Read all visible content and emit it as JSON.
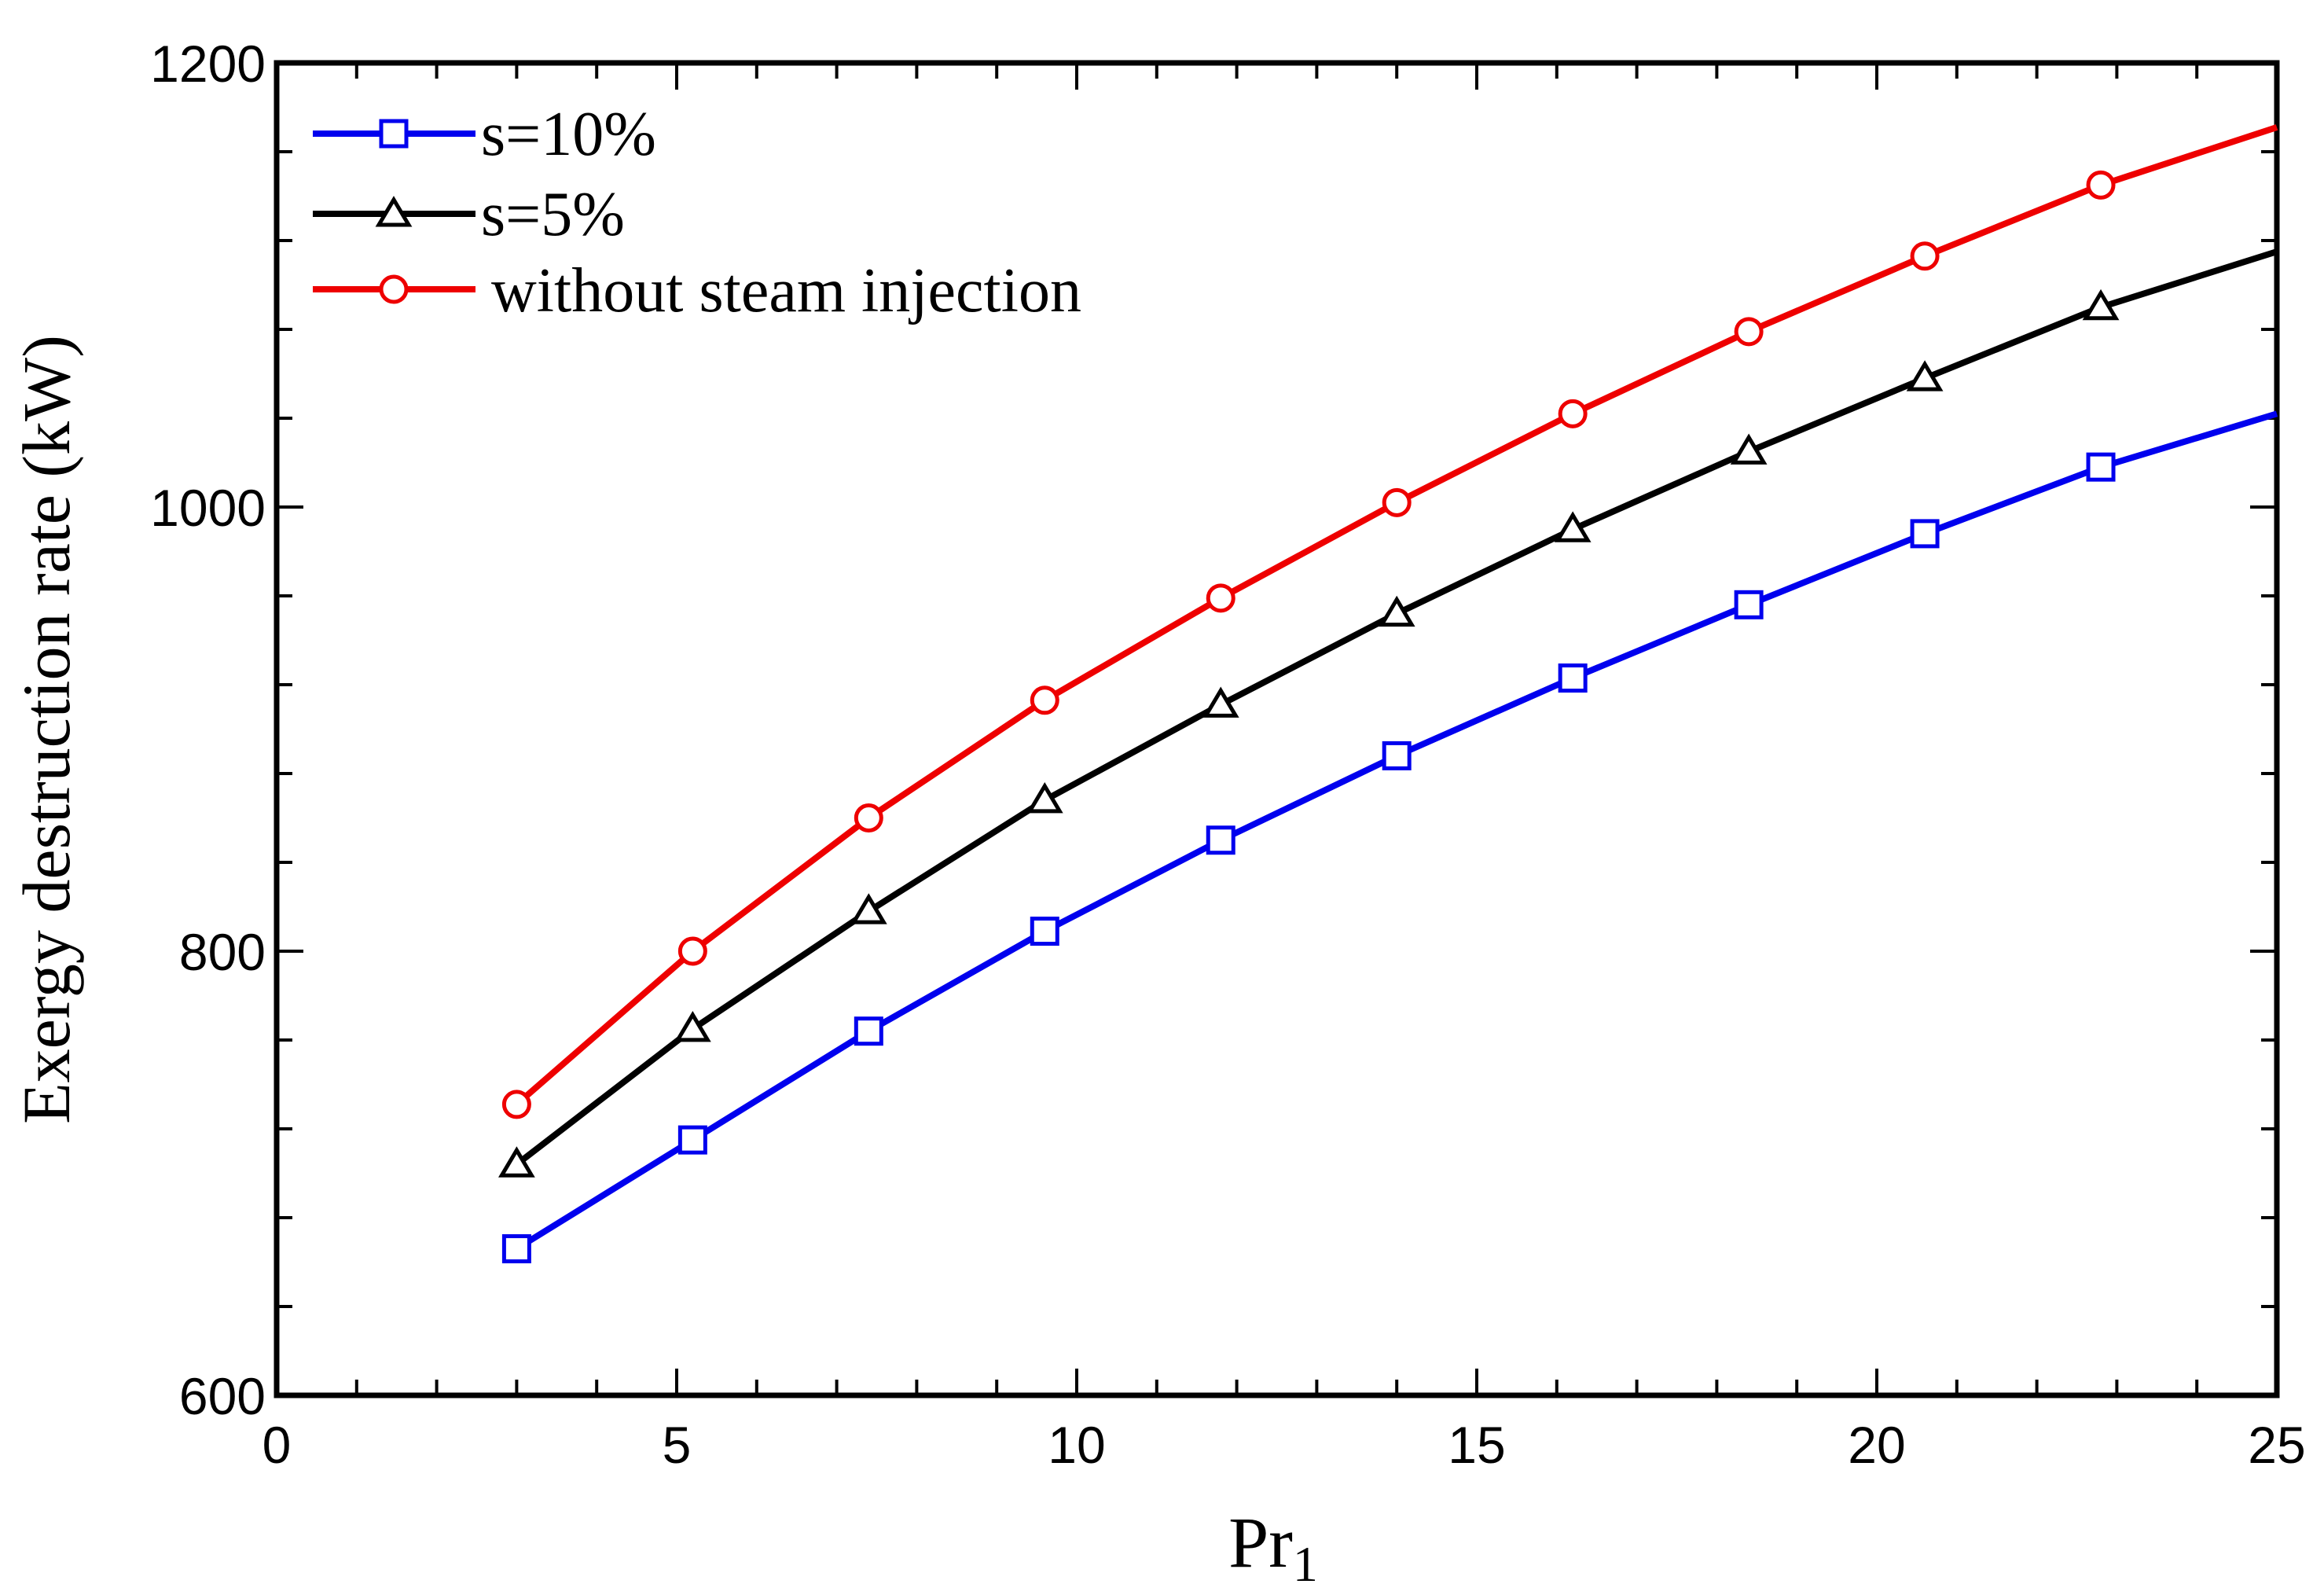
{
  "chart_data": {
    "type": "line",
    "title": "",
    "xlabel": "Pr",
    "xlabel_subscript": "1",
    "ylabel": "Exergy destruction rate (kW)",
    "xlim": [
      0,
      25
    ],
    "ylim": [
      600,
      1200
    ],
    "xticks": [
      0,
      5,
      10,
      15,
      20,
      25
    ],
    "yticks": [
      600,
      800,
      1000,
      1200
    ],
    "xtick_labels": [
      "0",
      "5",
      "10",
      "15",
      "20",
      "25"
    ],
    "ytick_labels": [
      "600",
      "800",
      "1000",
      "1200"
    ],
    "grid": false,
    "legend_position": "top-left",
    "x": [
      3.0,
      5.2,
      7.4,
      9.6,
      11.8,
      14.0,
      16.2,
      18.4,
      20.6,
      22.8
    ],
    "series": [
      {
        "name": "s=10%",
        "color": "#0000ee",
        "marker": "square",
        "values": [
          666,
          715,
          764,
          809,
          850,
          888,
          923,
          956,
          988,
          1018
        ],
        "end_value": 1042
      },
      {
        "name": "s=5%",
        "color": "#000000",
        "marker": "triangle",
        "values": [
          704,
          765,
          818,
          868,
          911,
          952,
          990,
          1025,
          1058,
          1090
        ],
        "end_value": 1115
      },
      {
        "name": "without steam injection",
        "color": "#ee0000",
        "marker": "circle",
        "values": [
          731,
          800,
          860,
          913,
          959,
          1002,
          1042,
          1079,
          1113,
          1145
        ],
        "end_value": 1171
      }
    ]
  }
}
